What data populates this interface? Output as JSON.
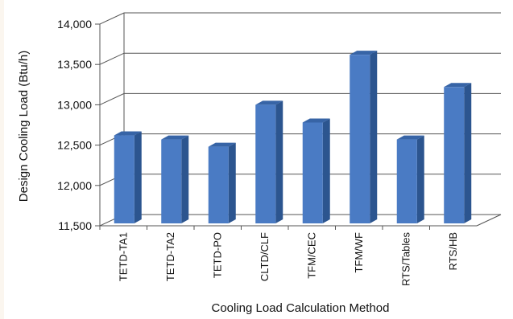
{
  "chart_data": {
    "type": "bar",
    "title": "",
    "xlabel": "Cooling Load Calculation Method",
    "ylabel": "Design Cooling Load (Btu/h)",
    "categories": [
      "TETD-TA1",
      "TETD-TA2",
      "TETD-PO",
      "CLTD/CLF",
      "TFM/CEC",
      "TFM/WF",
      "RTS/Tables",
      "RTS/HB"
    ],
    "values": [
      12620,
      12570,
      12480,
      13000,
      12780,
      13620,
      12570,
      13220
    ],
    "ylim": [
      11500,
      14000
    ],
    "yticks": [
      11500,
      12000,
      12500,
      13000,
      13500,
      14000
    ],
    "ytick_labels": [
      "11,500",
      "12,000",
      "12,500",
      "13,000",
      "13,500",
      "14,000"
    ],
    "grid": true,
    "style": "3d-column",
    "colors": {
      "bar_front": "#4a7bc4",
      "bar_side": "#2c558f",
      "bar_top": "#3764a6",
      "grid": "#555555"
    }
  }
}
